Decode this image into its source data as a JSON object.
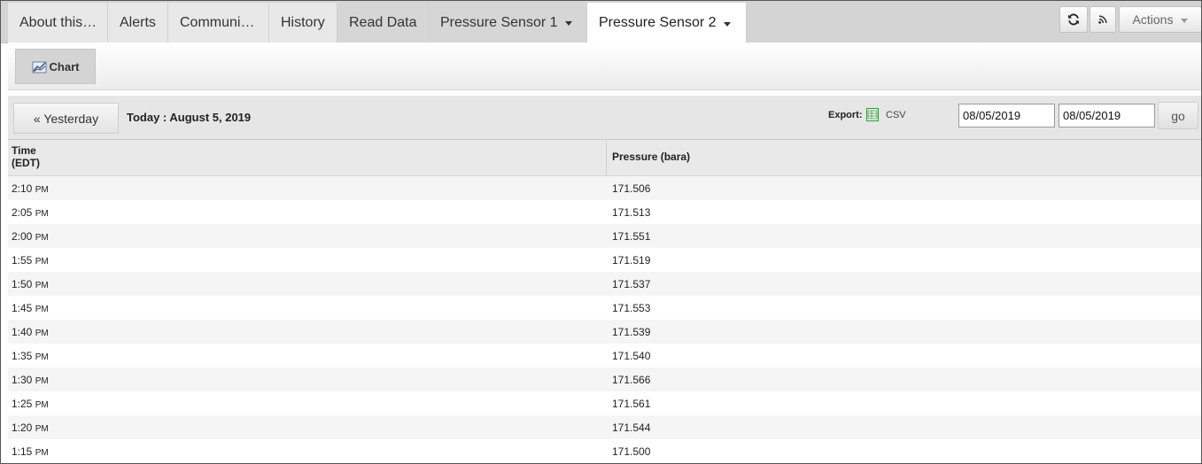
{
  "tabs": [
    {
      "label": "About this…"
    },
    {
      "label": "Alerts"
    },
    {
      "label": "Communi…"
    },
    {
      "label": "History"
    },
    {
      "label": "Read Data"
    },
    {
      "label": "Pressure Sensor 1"
    },
    {
      "label": "Pressure Sensor 2"
    }
  ],
  "toolbar": {
    "refresh_icon": "refresh-icon",
    "rss_icon": "rss-icon",
    "actions_label": "Actions"
  },
  "chart_button": {
    "label": "Chart",
    "icon": "line-chart-icon"
  },
  "nav": {
    "yesterday_label": "« Yesterday",
    "today_label": "Today : August 5, 2019",
    "export_label": "Export:",
    "csv_label": "CSV",
    "start_date": "08/05/2019",
    "end_date": "08/05/2019",
    "go_label": "go"
  },
  "table": {
    "col1_header_line1": "Time",
    "col1_header_line2": "(EDT)",
    "col2_header": "Pressure (bara)",
    "rows": [
      {
        "time": "2:10",
        "ampm": "PM",
        "value": "171.506"
      },
      {
        "time": "2:05",
        "ampm": "PM",
        "value": "171.513"
      },
      {
        "time": "2:00",
        "ampm": "PM",
        "value": "171.551"
      },
      {
        "time": "1:55",
        "ampm": "PM",
        "value": "171.519"
      },
      {
        "time": "1:50",
        "ampm": "PM",
        "value": "171.537"
      },
      {
        "time": "1:45",
        "ampm": "PM",
        "value": "171.553"
      },
      {
        "time": "1:40",
        "ampm": "PM",
        "value": "171.539"
      },
      {
        "time": "1:35",
        "ampm": "PM",
        "value": "171.540"
      },
      {
        "time": "1:30",
        "ampm": "PM",
        "value": "171.566"
      },
      {
        "time": "1:25",
        "ampm": "PM",
        "value": "171.561"
      },
      {
        "time": "1:20",
        "ampm": "PM",
        "value": "171.544"
      },
      {
        "time": "1:15",
        "ampm": "PM",
        "value": "171.500"
      }
    ]
  }
}
